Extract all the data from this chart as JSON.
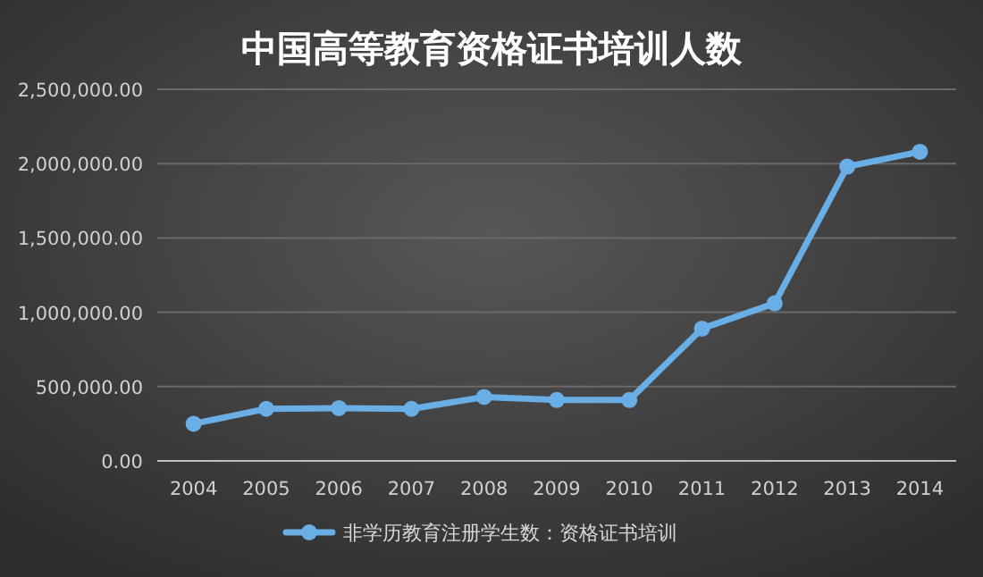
{
  "chart_data": {
    "type": "line",
    "title": "中国高等教育资格证书培训人数",
    "categories": [
      "2004",
      "2005",
      "2006",
      "2007",
      "2008",
      "2009",
      "2010",
      "2011",
      "2012",
      "2013",
      "2014"
    ],
    "series": [
      {
        "name": "非学历教育注册学生数：资格证书培训",
        "color": "#6aaee6",
        "values": [
          250000,
          350000,
          355000,
          350000,
          430000,
          410000,
          410000,
          890000,
          1060000,
          1980000,
          2080000
        ]
      }
    ],
    "ylim": [
      0,
      2500000
    ],
    "yticks": [
      {
        "value": 0,
        "label": "0.00"
      },
      {
        "value": 500000,
        "label": "500,000.00"
      },
      {
        "value": 1000000,
        "label": "1,000,000.00"
      },
      {
        "value": 1500000,
        "label": "1,500,000.00"
      },
      {
        "value": 2000000,
        "label": "2,000,000.00"
      },
      {
        "value": 2500000,
        "label": "2,500,000.00"
      }
    ],
    "grid": "y",
    "legend": "bottom",
    "marker": "circle",
    "line_style": "solid"
  }
}
